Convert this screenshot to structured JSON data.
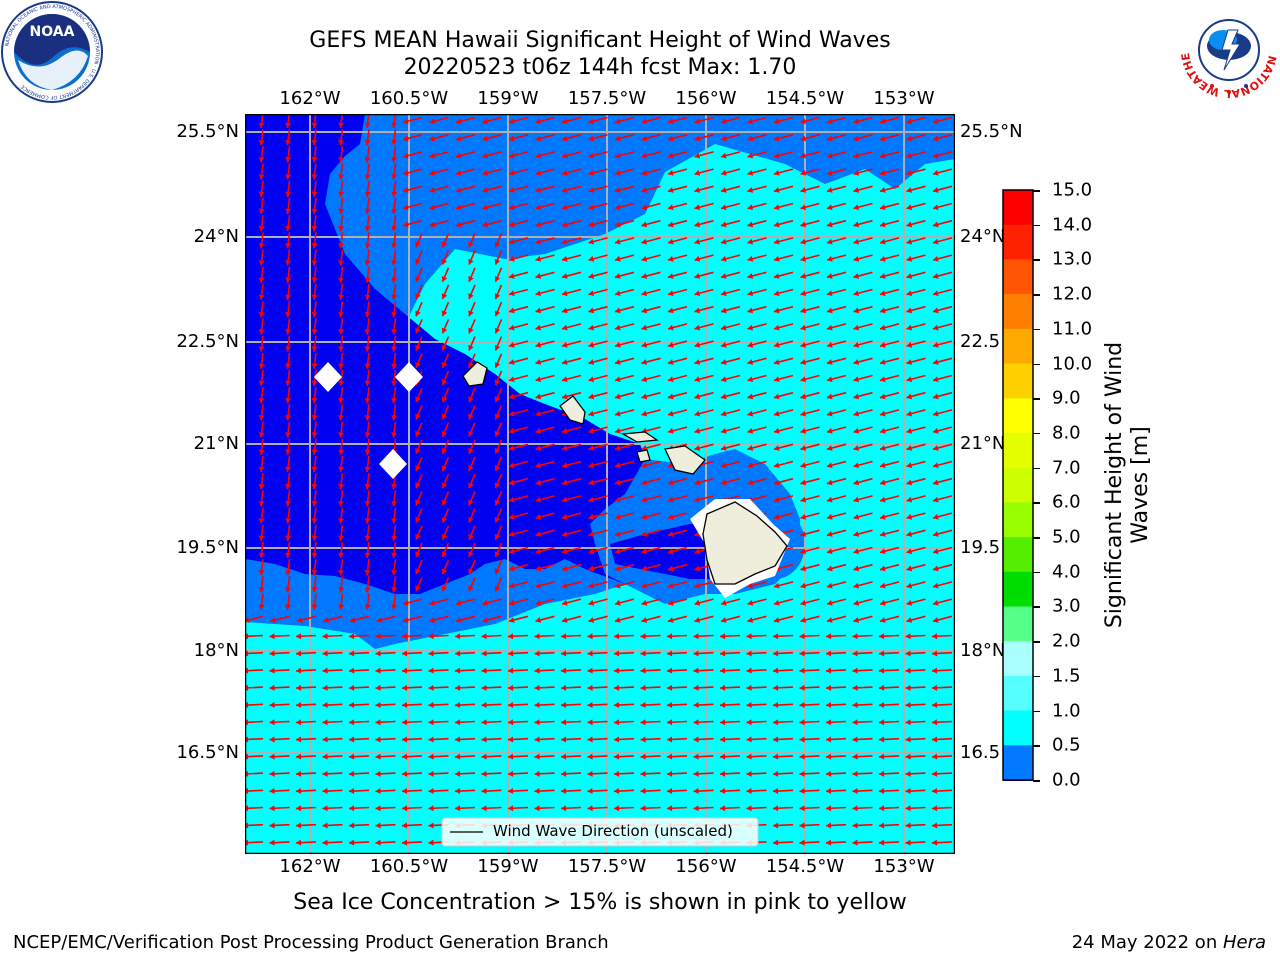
{
  "title": {
    "line1": "GEFS MEAN Hawaii Significant Height of Wind Waves",
    "line2": "20220523 t06z 144h fcst   Max: 1.70"
  },
  "logos": {
    "left": {
      "name": "NOAA",
      "ring_text": "NATIONAL OCEANIC AND ATMOSPHERIC ADMINISTRATION · U.S. DEPARTMENT OF COMMERCE"
    },
    "right": {
      "name": "NATIONAL WEATHER SERVICE"
    }
  },
  "map": {
    "lon_labels": [
      "162°W",
      "160.5°W",
      "159°W",
      "157.5°W",
      "156°W",
      "154.5°W",
      "153°W"
    ],
    "lat_labels": [
      "25.5°N",
      "24°N",
      "22.5°N",
      "21°N",
      "19.5°N",
      "18°N",
      "16.5°N"
    ],
    "right_lat_labels": [
      "25.5°N",
      "24°N",
      "22.5",
      "21°N",
      "19.5",
      "18°N",
      "16.5"
    ],
    "colors": {
      "deep_blue": "#0000f0",
      "mid_blue": "#0078ff",
      "cyan": "#00ffff",
      "land": "#efeedd",
      "arrow": "#ff0000",
      "grid": "#b0b0b0"
    },
    "legend_label": "Wind Wave Direction (unscaled)"
  },
  "colorbar": {
    "title_line1": "Significant Height of Wind",
    "title_line2": "Waves [m]",
    "ticks": [
      "15.0",
      "14.0",
      "13.0",
      "12.0",
      "11.0",
      "10.0",
      "9.0",
      "8.0",
      "7.0",
      "6.0",
      "5.0",
      "4.0",
      "3.0",
      "2.0",
      "1.5",
      "1.0",
      "0.5",
      "0.0"
    ],
    "colors": [
      "#ff0000",
      "#ff2200",
      "#ff5500",
      "#ff8000",
      "#ffaa00",
      "#ffd000",
      "#ffff00",
      "#e6ff00",
      "#ccff00",
      "#99ff00",
      "#55ee00",
      "#00dd00",
      "#55ff88",
      "#aaffff",
      "#55ffff",
      "#00ffff",
      "#0078ff",
      "#0000f0"
    ]
  },
  "sea_ice_note": "Sea Ice Concentration > 15% is shown in pink to yellow",
  "footer": {
    "left": "NCEP/EMC/Verification Post Processing Product Generation Branch",
    "right_prefix": "24 May 2022 on ",
    "right_machine": "Hera"
  }
}
